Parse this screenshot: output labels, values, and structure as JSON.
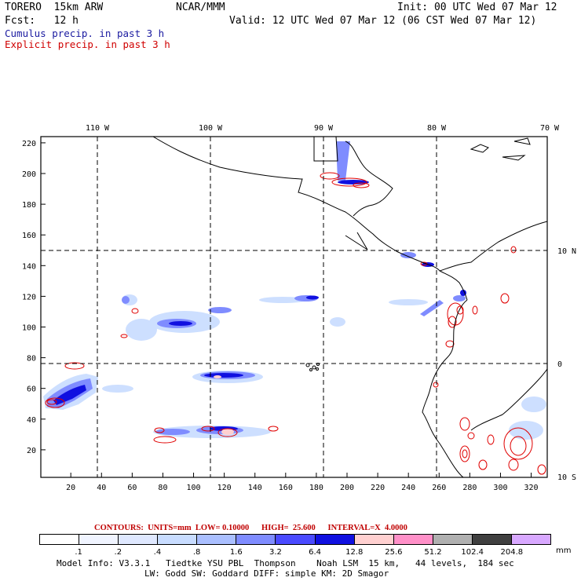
{
  "header": {
    "model": "TORERO  15km ARW",
    "org": "NCAR/MMM",
    "init": "Init: 00 UTC Wed 07 Mar 12",
    "fcst": "Fcst:   12 h",
    "valid": "Valid: 12 UTC Wed 07 Mar 12 (06 CST Wed 07 Mar 12)",
    "field_blue": "Cumulus precip. in past 3 h",
    "field_red": "Explicit precip. in past 3 h"
  },
  "axes": {
    "top_lon_labels": [
      "110 W",
      "100 W",
      "90 W",
      "80 W",
      "70 W"
    ],
    "right_lat_labels": [
      "10 N",
      "0",
      "10 S"
    ],
    "y_ticks": [
      "220",
      "200",
      "180",
      "160",
      "140",
      "120",
      "100",
      "80",
      "60",
      "40",
      "20"
    ],
    "x_ticks": [
      "20",
      "40",
      "60",
      "80",
      "100",
      "120",
      "140",
      "160",
      "180",
      "200",
      "220",
      "240",
      "260",
      "280",
      "300",
      "320"
    ]
  },
  "contours_line": "CONTOURS:  UNITS=mm  LOW= 0.10000      HIGH=  25.600      INTERVAL=X  4.0000",
  "legend": {
    "levels": [
      ".1",
      ".2",
      ".4",
      ".8",
      "1.6",
      "3.2",
      "6.4",
      "12.8",
      "25.6",
      "51.2",
      "102.4",
      "204.8"
    ],
    "units": "mm",
    "colors": [
      "#ffffff",
      "#f0f4ff",
      "#dfe8ff",
      "#c8dcff",
      "#aabfff",
      "#7f8cff",
      "#4a4aff",
      "#1010e0",
      "#ffd0d0",
      "#ff90c8",
      "#b0b0b0",
      "#404040",
      "#d8a8ff"
    ]
  },
  "model_info": {
    "line1": "Model Info: V3.3.1   Tiedtke YSU PBL  Thompson    Noah LSM  15 km,   44 levels,  184 sec",
    "line2": "LW: Godd SW: Goddard DIFF: simple KM: 2D Smagor"
  }
}
